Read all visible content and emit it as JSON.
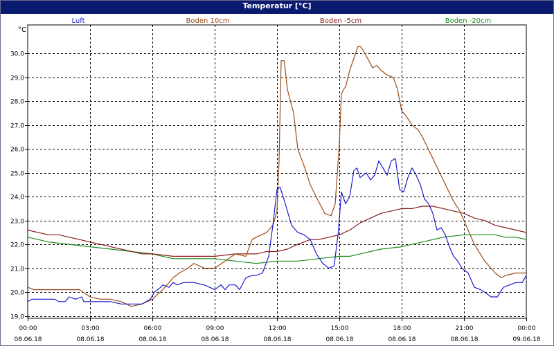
{
  "window": {
    "title": "Temperatur [°C]"
  },
  "chart_data": {
    "type": "line",
    "title": "Temperatur [°C]",
    "unit_label": "°C",
    "ylim": [
      18.9,
      31.2
    ],
    "y_ticks": [
      19.0,
      20.0,
      21.0,
      22.0,
      23.0,
      24.0,
      25.0,
      26.0,
      27.0,
      28.0,
      29.0,
      30.0
    ],
    "y_tick_labels": [
      "19,0",
      "20,0",
      "21,0",
      "22,0",
      "23,0",
      "24,0",
      "25,0",
      "26,0",
      "27,0",
      "28,0",
      "29,0",
      "30,0"
    ],
    "xlim": [
      0,
      24
    ],
    "x_ticks": [
      {
        "hour": 0,
        "time": "00:00",
        "date": "08.06.18"
      },
      {
        "hour": 3,
        "time": "03:00",
        "date": "08.06.18"
      },
      {
        "hour": 6,
        "time": "06:00",
        "date": "08.06.18"
      },
      {
        "hour": 9,
        "time": "09:00",
        "date": "08.06.18"
      },
      {
        "hour": 12,
        "time": "12:00",
        "date": "08.06.18"
      },
      {
        "hour": 15,
        "time": "15:00",
        "date": "08.06.18"
      },
      {
        "hour": 18,
        "time": "18:00",
        "date": "08.06.18"
      },
      {
        "hour": 21,
        "time": "21:00",
        "date": "08.06.18"
      },
      {
        "hour": 24,
        "time": "00:00",
        "date": "09.06.18"
      }
    ],
    "grid": true,
    "legend_position": "top",
    "series": [
      {
        "name": "Luft",
        "color": "#1a1acc",
        "x": [
          0,
          0.2,
          1.3,
          1.5,
          1.8,
          2.0,
          2.3,
          2.6,
          2.7,
          3.0,
          3.5,
          4.0,
          4.5,
          4.8,
          5.0,
          5.5,
          5.9,
          6.1,
          6.4,
          6.5,
          6.8,
          7.0,
          7.2,
          7.5,
          8.0,
          8.5,
          9.0,
          9.3,
          9.5,
          9.7,
          10.0,
          10.2,
          10.5,
          10.8,
          11.0,
          11.3,
          11.6,
          11.8,
          12.0,
          12.15,
          12.4,
          12.7,
          13.0,
          13.3,
          13.6,
          13.9,
          14.2,
          14.5,
          14.75,
          14.95,
          15.1,
          15.3,
          15.5,
          15.7,
          15.85,
          16.0,
          16.3,
          16.5,
          16.7,
          16.9,
          17.1,
          17.3,
          17.5,
          17.7,
          17.9,
          18.1,
          18.3,
          18.5,
          18.7,
          18.9,
          19.1,
          19.3,
          19.5,
          19.7,
          19.9,
          20.1,
          20.3,
          20.5,
          20.7,
          20.9,
          21.2,
          21.5,
          21.8,
          22.0,
          22.3,
          22.6,
          22.9,
          23.2,
          23.5,
          23.8,
          24.0
        ],
        "values": [
          19.6,
          19.7,
          19.7,
          19.6,
          19.6,
          19.8,
          19.7,
          19.8,
          19.6,
          19.6,
          19.6,
          19.6,
          19.5,
          19.5,
          19.5,
          19.5,
          19.7,
          20.0,
          20.2,
          20.3,
          20.2,
          20.4,
          20.3,
          20.4,
          20.4,
          20.3,
          20.1,
          20.3,
          20.1,
          20.3,
          20.3,
          20.1,
          20.6,
          20.7,
          20.7,
          20.8,
          21.5,
          22.8,
          24.3,
          24.4,
          23.7,
          22.8,
          22.5,
          22.4,
          22.2,
          21.6,
          21.2,
          21.0,
          21.1,
          22.5,
          24.2,
          23.7,
          24.0,
          25.1,
          25.2,
          24.8,
          25.0,
          24.7,
          24.9,
          25.5,
          25.2,
          24.9,
          25.5,
          25.6,
          24.3,
          24.2,
          24.8,
          25.2,
          24.9,
          24.5,
          23.9,
          23.7,
          23.3,
          22.6,
          22.7,
          22.4,
          21.9,
          21.5,
          21.3,
          21.0,
          20.8,
          20.2,
          20.1,
          20.0,
          19.8,
          19.8,
          20.2,
          20.3,
          20.4,
          20.4,
          20.7
        ]
      },
      {
        "name": "Boden 10cm",
        "color": "#9a4a14",
        "x": [
          0,
          0.3,
          1.0,
          2.0,
          2.5,
          3.0,
          3.5,
          4.0,
          4.5,
          5.0,
          5.5,
          6.0,
          6.5,
          7.0,
          7.3,
          7.7,
          8.0,
          8.5,
          9.0,
          9.5,
          10.0,
          10.5,
          10.8,
          11.0,
          11.5,
          11.8,
          12.0,
          12.1,
          12.2,
          12.35,
          12.5,
          12.8,
          13.0,
          13.3,
          13.6,
          14.0,
          14.3,
          14.6,
          14.8,
          15.0,
          15.1,
          15.2,
          15.3,
          15.5,
          15.7,
          15.9,
          16.0,
          16.1,
          16.3,
          16.6,
          16.8,
          17.0,
          17.3,
          17.6,
          17.8,
          18.0,
          18.2,
          18.5,
          18.8,
          19.0,
          19.5,
          20.0,
          20.5,
          20.8,
          21.0,
          21.5,
          22.0,
          22.5,
          22.8,
          23.0,
          23.5,
          24.0
        ],
        "values": [
          20.2,
          20.1,
          20.1,
          20.1,
          20.1,
          19.8,
          19.7,
          19.7,
          19.6,
          19.4,
          19.5,
          19.7,
          20.1,
          20.6,
          20.8,
          21.0,
          21.2,
          21.0,
          21.0,
          21.3,
          21.6,
          21.5,
          22.2,
          22.3,
          22.5,
          22.8,
          23.4,
          25.5,
          29.7,
          29.7,
          28.5,
          27.5,
          26.0,
          25.3,
          24.5,
          23.8,
          23.3,
          23.2,
          23.7,
          26.2,
          28.3,
          28.5,
          28.6,
          29.3,
          29.8,
          30.3,
          30.3,
          30.2,
          29.9,
          29.4,
          29.5,
          29.3,
          29.1,
          29.0,
          28.5,
          27.6,
          27.4,
          27.0,
          26.8,
          26.5,
          25.6,
          24.7,
          23.8,
          23.4,
          23.0,
          22.0,
          21.3,
          20.8,
          20.6,
          20.7,
          20.8,
          20.8
        ]
      },
      {
        "name": "Boden -5cm",
        "color": "#8b1a1a",
        "x": [
          0,
          0.5,
          1.0,
          1.5,
          2.0,
          2.5,
          3.0,
          3.5,
          4.0,
          4.5,
          5.0,
          5.5,
          6.0,
          7.0,
          8.0,
          9.0,
          10.0,
          11.0,
          11.5,
          12.0,
          12.5,
          13.0,
          13.3,
          13.6,
          14.0,
          14.5,
          15.0,
          15.5,
          16.0,
          16.5,
          17.0,
          17.5,
          18.0,
          18.5,
          19.0,
          19.5,
          20.0,
          20.5,
          21.0,
          21.5,
          22.0,
          22.5,
          23.0,
          23.5,
          24.0
        ],
        "values": [
          22.6,
          22.5,
          22.4,
          22.4,
          22.3,
          22.2,
          22.1,
          22.0,
          21.9,
          21.8,
          21.7,
          21.6,
          21.6,
          21.5,
          21.5,
          21.5,
          21.6,
          21.6,
          21.7,
          21.7,
          21.8,
          22.0,
          22.1,
          22.2,
          22.2,
          22.3,
          22.4,
          22.6,
          22.9,
          23.1,
          23.3,
          23.4,
          23.5,
          23.5,
          23.6,
          23.6,
          23.5,
          23.4,
          23.3,
          23.1,
          23.0,
          22.8,
          22.7,
          22.6,
          22.5
        ]
      },
      {
        "name": "Boden -20cm",
        "color": "#1a8a1a",
        "x": [
          0,
          0.5,
          1.0,
          2.0,
          3.0,
          4.0,
          5.0,
          6.0,
          6.5,
          7.0,
          8.0,
          9.0,
          10.0,
          11.0,
          12.0,
          13.0,
          14.0,
          15.0,
          15.5,
          16.0,
          17.0,
          18.0,
          18.5,
          19.0,
          19.5,
          20.0,
          21.0,
          22.0,
          22.5,
          23.0,
          23.5,
          24.0
        ],
        "values": [
          22.3,
          22.2,
          22.1,
          22.0,
          21.9,
          21.8,
          21.7,
          21.6,
          21.5,
          21.4,
          21.4,
          21.4,
          21.3,
          21.2,
          21.3,
          21.3,
          21.4,
          21.5,
          21.5,
          21.6,
          21.8,
          21.9,
          22.0,
          22.1,
          22.2,
          22.3,
          22.4,
          22.4,
          22.4,
          22.3,
          22.3,
          22.2
        ]
      }
    ]
  }
}
